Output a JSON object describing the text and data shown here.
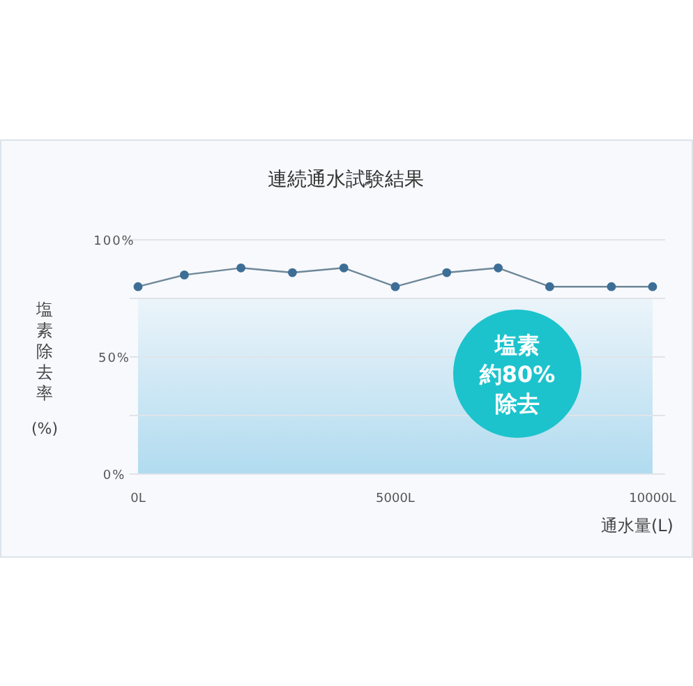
{
  "chart_data": {
    "type": "line",
    "title": "連続通水試験結果",
    "xlabel": "通水量(L)",
    "ylabel": "塩素除去率(%)",
    "x": [
      0,
      900,
      2000,
      3000,
      4000,
      5000,
      6000,
      7000,
      8000,
      9200,
      10000
    ],
    "series": [
      {
        "color": "#3d6e96",
        "values": [
          80,
          85,
          88,
          86,
          88,
          80,
          86,
          88,
          80,
          80,
          80
        ]
      }
    ],
    "xlim": [
      0,
      10000
    ],
    "xticks": [
      {
        "value": 0,
        "label": "0L"
      },
      {
        "value": 5000,
        "label": "5000L"
      },
      {
        "value": 10000,
        "label": "10000L"
      }
    ],
    "ylim": [
      0,
      100
    ],
    "yticks": [
      {
        "value": 0,
        "label": "0%"
      },
      {
        "value": 25,
        "label": null
      },
      {
        "value": 50,
        "label": "50%"
      },
      {
        "value": 75,
        "label": null
      },
      {
        "value": 100,
        "label": "100%"
      }
    ],
    "grid": "y",
    "marker": "circle",
    "line_style": "solid",
    "bands": [
      {
        "axis": "y",
        "from": 0,
        "to": 75,
        "color": "#a9d8ee"
      }
    ],
    "annotations": [
      "塩素",
      "約80%",
      "除去"
    ]
  }
}
